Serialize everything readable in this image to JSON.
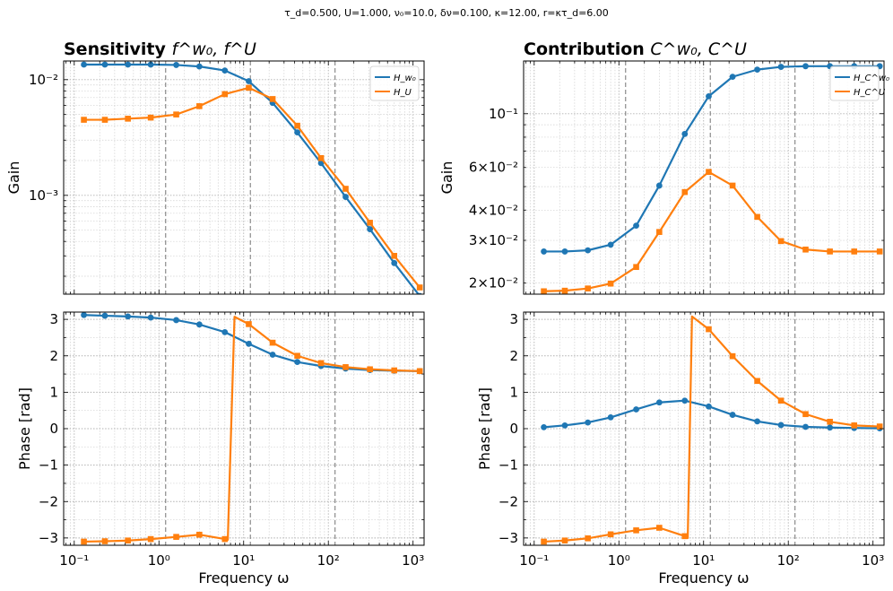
{
  "chart_data": {
    "suptitle": "τ_d=0.500, U=1.000, ν₀=10.0, δν=0.100, κ=12.00, r=κτ_d=6.00",
    "xlabel": "Frequency ω",
    "xaxis": {
      "scale": "log",
      "xlim": [
        0.075,
        1350
      ],
      "ticks": [
        0.1,
        1,
        10,
        100,
        1000
      ],
      "tick_labels": [
        "10⁻¹",
        "10⁰",
        "10¹",
        "10²",
        "10³"
      ]
    },
    "vertical_markers": [
      1.2,
      12,
      120
    ],
    "x": [
      0.13,
      0.23,
      0.43,
      0.8,
      1.6,
      3.0,
      6.0,
      11.5,
      22,
      43,
      82,
      160,
      310,
      600,
      1200
    ],
    "panels": [
      {
        "id": "sensitivity-gain",
        "type": "line",
        "title_bold": "Sensitivity",
        "title_math": "f^w₀, f^U",
        "ylabel": "Gain",
        "yscale": "log",
        "ylim": [
          0.00014,
          0.0145
        ],
        "yticks": [
          0.001,
          0.01
        ],
        "ytick_labels": [
          "10⁻³",
          "10⁻²"
        ],
        "legend": "top-right",
        "series": [
          {
            "name": "H_w₀",
            "color": "#1f77b4",
            "marker": "circle",
            "values": [
              0.0135,
              0.0135,
              0.0135,
              0.0135,
              0.0134,
              0.013,
              0.012,
              0.0097,
              0.0063,
              0.0035,
              0.0019,
              0.00097,
              0.00051,
              0.00026,
              0.000135
            ]
          },
          {
            "name": "H_U",
            "color": "#ff7f0e",
            "marker": "square",
            "values": [
              0.0045,
              0.0045,
              0.0046,
              0.0047,
              0.005,
              0.0059,
              0.0075,
              0.0085,
              0.0068,
              0.004,
              0.0021,
              0.00114,
              0.00058,
              0.0003,
              0.00016
            ]
          }
        ]
      },
      {
        "id": "contribution-gain",
        "type": "line",
        "title_bold": "Contribution",
        "title_math": "C^w₀, C^U",
        "ylabel": "Gain",
        "yscale": "log",
        "ylim": [
          0.018,
          0.165
        ],
        "yticks": [
          0.02,
          0.03,
          0.04,
          0.06,
          0.1
        ],
        "ytick_labels": [
          "2×10⁻²",
          "3×10⁻²",
          "4×10⁻²",
          "6×10⁻²",
          "10⁻¹"
        ],
        "legend": "top-right",
        "series": [
          {
            "name": "H_C^w₀",
            "color": "#1f77b4",
            "marker": "circle",
            "values": [
              0.027,
              0.027,
              0.0273,
              0.0288,
              0.0345,
              0.0505,
              0.0825,
              0.118,
              0.142,
              0.152,
              0.156,
              0.157,
              0.157,
              0.157,
              0.157
            ]
          },
          {
            "name": "H_C^U",
            "color": "#ff7f0e",
            "marker": "square",
            "values": [
              0.0185,
              0.0186,
              0.019,
              0.0199,
              0.0233,
              0.0325,
              0.0475,
              0.0575,
              0.0505,
              0.0375,
              0.0298,
              0.0275,
              0.027,
              0.027,
              0.027
            ]
          }
        ]
      },
      {
        "id": "sensitivity-phase",
        "type": "line",
        "ylabel": "Phase [rad]",
        "yscale": "linear",
        "ylim": [
          -3.2,
          3.2
        ],
        "yticks": [
          -3,
          -2,
          -1,
          0,
          1,
          2,
          3
        ],
        "ytick_labels": [
          "−3",
          "−2",
          "−1",
          "0",
          "1",
          "2",
          "3"
        ],
        "series": [
          {
            "name": "H_w₀",
            "color": "#1f77b4",
            "marker": "circle",
            "values": [
              3.12,
              3.1,
              3.08,
              3.05,
              2.98,
              2.86,
              2.65,
              2.33,
              2.03,
              1.83,
              1.72,
              1.65,
              1.61,
              1.59,
              1.58
            ]
          },
          {
            "name": "H_U",
            "color": "#ff7f0e",
            "marker": "square",
            "values": [
              -3.1,
              -3.09,
              -3.07,
              -3.03,
              -2.97,
              -2.91,
              -3.03,
              2.87,
              2.36,
              2.0,
              1.8,
              1.69,
              1.63,
              1.6,
              1.58
            ],
            "extra_points": [
              {
                "x": 6.5,
                "y": -3.05,
                "after_index": 6
              },
              {
                "x": 7.8,
                "y": 3.07,
                "after_index": 6
              }
            ]
          }
        ]
      },
      {
        "id": "contribution-phase",
        "type": "line",
        "ylabel": "Phase [rad]",
        "yscale": "linear",
        "ylim": [
          -3.2,
          3.2
        ],
        "yticks": [
          -3,
          -2,
          -1,
          0,
          1,
          2,
          3
        ],
        "ytick_labels": [
          "−3",
          "−2",
          "−1",
          "0",
          "1",
          "2",
          "3"
        ],
        "series": [
          {
            "name": "H_C^w₀",
            "color": "#1f77b4",
            "marker": "circle",
            "values": [
              0.04,
              0.09,
              0.17,
              0.31,
              0.53,
              0.72,
              0.77,
              0.61,
              0.38,
              0.2,
              0.1,
              0.05,
              0.03,
              0.02,
              0.01
            ]
          },
          {
            "name": "H_C^U",
            "color": "#ff7f0e",
            "marker": "square",
            "values": [
              -3.1,
              -3.07,
              -3.01,
              -2.9,
              -2.79,
              -2.72,
              -2.95,
              2.73,
              1.99,
              1.31,
              0.77,
              0.4,
              0.19,
              0.09,
              0.06
            ],
            "extra_points": [
              {
                "x": 6.5,
                "y": -3.0,
                "after_index": 6
              },
              {
                "x": 7.3,
                "y": 3.08,
                "after_index": 6
              }
            ]
          }
        ]
      }
    ]
  }
}
